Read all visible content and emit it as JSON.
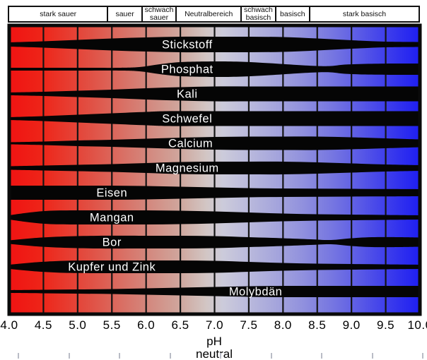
{
  "labels": {
    "xlabel_line1": "pH",
    "xlabel_line2": "neutral"
  },
  "colors": {
    "band": "#050505",
    "band_label": "#ffffff",
    "grid_line": "#141414",
    "chart_border": "#0a0a0a",
    "zone_border": "#111111",
    "gradient_stops": [
      [
        "0%",
        "#f01212"
      ],
      [
        "8%",
        "#ee2418"
      ],
      [
        "20%",
        "#e15044"
      ],
      [
        "33%",
        "#d4847a"
      ],
      [
        "42%",
        "#cfa89f"
      ],
      [
        "48%",
        "#d2c6c4"
      ],
      [
        "52%",
        "#cccbdb"
      ],
      [
        "60%",
        "#b4b4dc"
      ],
      [
        "70%",
        "#9595dd"
      ],
      [
        "80%",
        "#7070e2"
      ],
      [
        "90%",
        "#4444ea"
      ],
      [
        "100%",
        "#1c1cf2"
      ]
    ]
  },
  "chart_data": {
    "type": "area",
    "description": "Nutrient availability vs. soil pH; band thickness = availability (wider = more available)",
    "x_axis": {
      "min": 4.0,
      "max": 10.0,
      "tick_step": 0.5,
      "tick_labels": [
        "4.0",
        "4.5",
        "5.0",
        "5.5",
        "6.0",
        "6.5",
        "7.0",
        "7.5",
        "8.0",
        "8.5",
        "9.0",
        "9.5",
        "10.0"
      ],
      "label": "pH neutral"
    },
    "zones": [
      {
        "label": "stark sauer",
        "from": 4.0,
        "to": 5.45
      },
      {
        "label": "sauer",
        "from": 5.45,
        "to": 5.95
      },
      {
        "label": "schwach sauer",
        "from": 5.95,
        "to": 6.45
      },
      {
        "label": "Neutralbereich",
        "from": 6.45,
        "to": 7.4
      },
      {
        "label": "schwach basisch",
        "from": 7.4,
        "to": 7.9
      },
      {
        "label": "basisch",
        "from": 7.9,
        "to": 8.4
      },
      {
        "label": "stark basisch",
        "from": 8.4,
        "to": 10.0
      }
    ],
    "availability_scale": [
      0,
      22
    ],
    "bands": [
      {
        "name": "Stickstoff",
        "label_ph": 6.6,
        "profile": [
          [
            4,
            6
          ],
          [
            4.5,
            9
          ],
          [
            5,
            13
          ],
          [
            5.5,
            17
          ],
          [
            6,
            20
          ],
          [
            6.5,
            22
          ],
          [
            7,
            22
          ],
          [
            7.5,
            22
          ],
          [
            8,
            21
          ],
          [
            8.5,
            17
          ],
          [
            9,
            12
          ],
          [
            9.5,
            8
          ],
          [
            10,
            7
          ]
        ]
      },
      {
        "name": "Phosphat",
        "label_ph": 6.6,
        "profile": [
          [
            4,
            4
          ],
          [
            5,
            4
          ],
          [
            5.6,
            4
          ],
          [
            5.9,
            6
          ],
          [
            6.2,
            14
          ],
          [
            6.5,
            20
          ],
          [
            7,
            22
          ],
          [
            7.4,
            21
          ],
          [
            7.8,
            17
          ],
          [
            8.2,
            12
          ],
          [
            8.5,
            9
          ],
          [
            8.7,
            9
          ],
          [
            8.9,
            13
          ],
          [
            9.2,
            15
          ],
          [
            9.6,
            16
          ],
          [
            10,
            16
          ]
        ]
      },
      {
        "name": "Kali",
        "label_ph": 6.6,
        "profile": [
          [
            4,
            4
          ],
          [
            4.5,
            6
          ],
          [
            5,
            9
          ],
          [
            5.5,
            12
          ],
          [
            6,
            16
          ],
          [
            6.5,
            19
          ],
          [
            7,
            21
          ],
          [
            7.5,
            21
          ],
          [
            8,
            21
          ],
          [
            9,
            21
          ],
          [
            10,
            21
          ]
        ]
      },
      {
        "name": "Schwefel",
        "label_ph": 6.6,
        "profile": [
          [
            4,
            4
          ],
          [
            4.5,
            7
          ],
          [
            5,
            11
          ],
          [
            5.5,
            15
          ],
          [
            6,
            19
          ],
          [
            6.3,
            21
          ],
          [
            7,
            21
          ],
          [
            8,
            21
          ],
          [
            9,
            21
          ],
          [
            10,
            21
          ]
        ]
      },
      {
        "name": "Calcium",
        "label_ph": 6.65,
        "profile": [
          [
            4,
            3
          ],
          [
            4.5,
            5
          ],
          [
            5,
            8
          ],
          [
            5.5,
            10
          ],
          [
            6,
            13
          ],
          [
            6.5,
            16
          ],
          [
            7,
            18
          ],
          [
            7.5,
            19
          ],
          [
            8,
            19
          ],
          [
            8.5,
            19
          ],
          [
            9,
            17
          ],
          [
            9.5,
            14
          ],
          [
            10,
            11
          ]
        ]
      },
      {
        "name": "Magnesium",
        "label_ph": 6.6,
        "profile": [
          [
            4,
            5
          ],
          [
            4.5,
            7
          ],
          [
            5,
            9
          ],
          [
            5.5,
            11
          ],
          [
            6,
            14
          ],
          [
            6.5,
            17
          ],
          [
            7,
            18
          ],
          [
            7.5,
            18
          ],
          [
            8,
            18
          ],
          [
            8.5,
            16
          ],
          [
            9,
            13
          ],
          [
            9.5,
            10
          ],
          [
            10,
            8
          ]
        ]
      },
      {
        "name": "Eisen",
        "label_ph": 5.5,
        "profile": [
          [
            4,
            20
          ],
          [
            4.5,
            20
          ],
          [
            5,
            20
          ],
          [
            5.5,
            20
          ],
          [
            6,
            19
          ],
          [
            6.5,
            17
          ],
          [
            7,
            15
          ],
          [
            7.5,
            13
          ],
          [
            8,
            12
          ],
          [
            8.5,
            11.5
          ],
          [
            9,
            11
          ],
          [
            9.5,
            10.5
          ],
          [
            10,
            10
          ]
        ]
      },
      {
        "name": "Mangan",
        "label_ph": 5.5,
        "profile": [
          [
            4,
            6
          ],
          [
            4.3,
            14
          ],
          [
            4.6,
            19
          ],
          [
            5,
            20
          ],
          [
            5.5,
            20
          ],
          [
            6,
            20
          ],
          [
            6.5,
            19
          ],
          [
            7,
            17
          ],
          [
            7.5,
            14
          ],
          [
            8,
            11
          ],
          [
            8.5,
            9
          ],
          [
            9,
            8
          ],
          [
            9.5,
            7
          ],
          [
            10,
            6
          ]
        ]
      },
      {
        "name": "Bor",
        "label_ph": 5.5,
        "profile": [
          [
            4,
            5
          ],
          [
            4.4,
            12
          ],
          [
            4.8,
            16
          ],
          [
            5.3,
            18
          ],
          [
            6,
            18
          ],
          [
            6.5,
            18
          ],
          [
            7,
            17
          ],
          [
            7.5,
            14
          ],
          [
            8,
            11
          ],
          [
            8.4,
            8
          ],
          [
            8.7,
            6
          ],
          [
            9,
            11
          ],
          [
            9.3,
            14
          ],
          [
            9.7,
            14
          ],
          [
            10,
            13
          ]
        ]
      },
      {
        "name": "Kupfer und Zink",
        "label_ph": 5.5,
        "profile": [
          [
            4,
            6
          ],
          [
            4.4,
            13
          ],
          [
            4.8,
            17
          ],
          [
            5.3,
            18
          ],
          [
            6,
            18
          ],
          [
            6.5,
            18
          ],
          [
            7,
            17
          ],
          [
            7.5,
            14
          ],
          [
            8,
            11
          ],
          [
            8.5,
            9
          ],
          [
            9,
            8
          ],
          [
            9.5,
            7
          ],
          [
            10,
            6
          ]
        ]
      },
      {
        "name": "Molybdän",
        "label_ph": 7.6,
        "profile": [
          [
            4,
            4
          ],
          [
            4.5,
            5
          ],
          [
            5,
            6
          ],
          [
            5.5,
            7
          ],
          [
            6,
            9
          ],
          [
            6.5,
            11
          ],
          [
            7,
            13
          ],
          [
            7.5,
            15
          ],
          [
            8,
            16
          ],
          [
            8.5,
            16
          ],
          [
            9,
            16
          ],
          [
            9.5,
            16
          ],
          [
            10,
            16
          ]
        ]
      }
    ]
  }
}
